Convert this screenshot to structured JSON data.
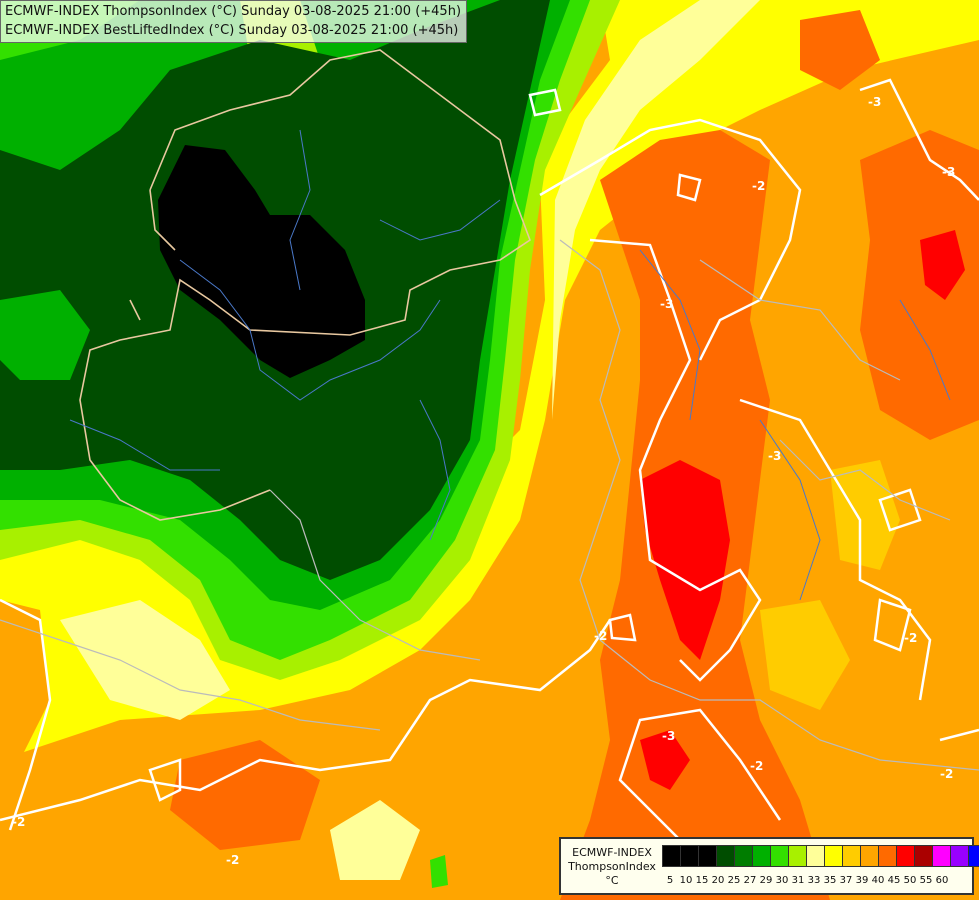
{
  "header": {
    "line1": "ECMWF-INDEX ThompsonIndex (°C) Sunday 03-08-2025 21:00 (+45h)",
    "line2": "ECMWF-INDEX BestLiftedIndex (°C) Sunday 03-08-2025 21:00 (+45h)"
  },
  "legend": {
    "model": "ECMWF-INDEX",
    "parameter": "ThompsonIndex",
    "unit": "°C",
    "classes": [
      {
        "value": "5",
        "color": "#000000"
      },
      {
        "value": "10",
        "color": "#000000"
      },
      {
        "value": "15",
        "color": "#000000"
      },
      {
        "value": "20",
        "color": "#004d00"
      },
      {
        "value": "25",
        "color": "#007d00"
      },
      {
        "value": "27",
        "color": "#00b000"
      },
      {
        "value": "29",
        "color": "#33e000"
      },
      {
        "value": "30",
        "color": "#a8f000"
      },
      {
        "value": "31",
        "color": "#ffff99"
      },
      {
        "value": "33",
        "color": "#ffff00"
      },
      {
        "value": "35",
        "color": "#ffcc00"
      },
      {
        "value": "37",
        "color": "#ffa500"
      },
      {
        "value": "39",
        "color": "#ff6a00"
      },
      {
        "value": "40",
        "color": "#ff0000"
      },
      {
        "value": "45",
        "color": "#aa0000"
      },
      {
        "value": "50",
        "color": "#ff00ff"
      },
      {
        "value": "55",
        "color": "#9900ff"
      },
      {
        "value": "60",
        "color": "#0000ff"
      }
    ]
  },
  "contour_labels": [
    "-3",
    "-3",
    "-3",
    "-2",
    "-3",
    "-2",
    "-2",
    "-2",
    "-2",
    "-2",
    "-2",
    "-3"
  ]
}
